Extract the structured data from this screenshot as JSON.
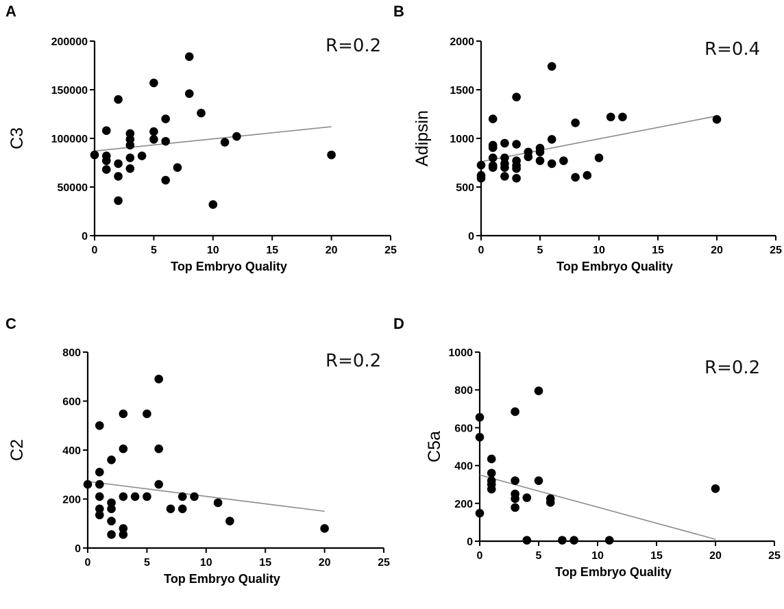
{
  "chart_data": [
    {
      "type": "scatter",
      "panel": "A",
      "xlabel": "Top Embryo Quality",
      "ylabel": "C3",
      "annotation": "R=0.2",
      "xlim": [
        0,
        25
      ],
      "ylim": [
        0,
        200000
      ],
      "xticks": [
        0,
        5,
        10,
        15,
        20,
        25
      ],
      "yticks": [
        0,
        50000,
        100000,
        150000,
        200000
      ],
      "trendline": [
        [
          0,
          87000
        ],
        [
          20,
          112000
        ]
      ],
      "points": [
        [
          0,
          83000
        ],
        [
          1,
          108000
        ],
        [
          1,
          82000
        ],
        [
          1,
          77000
        ],
        [
          1,
          68000
        ],
        [
          2,
          140000
        ],
        [
          2,
          74000
        ],
        [
          2,
          61000
        ],
        [
          2,
          36000
        ],
        [
          3,
          105000
        ],
        [
          3,
          99000
        ],
        [
          3,
          93000
        ],
        [
          3,
          80000
        ],
        [
          3,
          69000
        ],
        [
          4,
          82000
        ],
        [
          5,
          157000
        ],
        [
          5,
          107000
        ],
        [
          5,
          99000
        ],
        [
          6,
          120000
        ],
        [
          6,
          97000
        ],
        [
          6,
          57000
        ],
        [
          7,
          70000
        ],
        [
          8,
          184000
        ],
        [
          8,
          146000
        ],
        [
          9,
          126000
        ],
        [
          10,
          32000
        ],
        [
          11,
          96000
        ],
        [
          12,
          102000
        ],
        [
          20,
          83000
        ]
      ]
    },
    {
      "type": "scatter",
      "panel": "B",
      "xlabel": "Top Embryo Quality",
      "ylabel": "Adipsin",
      "annotation": "R=0.4",
      "xlim": [
        0,
        25
      ],
      "ylim": [
        0,
        2000
      ],
      "xticks": [
        0,
        5,
        10,
        15,
        20,
        25
      ],
      "yticks": [
        0,
        500,
        1000,
        1500,
        2000
      ],
      "trendline": [
        [
          0,
          760
        ],
        [
          20,
          1230
        ]
      ],
      "points": [
        [
          0,
          725
        ],
        [
          0,
          620
        ],
        [
          0,
          590
        ],
        [
          1,
          1200
        ],
        [
          1,
          930
        ],
        [
          1,
          905
        ],
        [
          1,
          800
        ],
        [
          1,
          720
        ],
        [
          1,
          700
        ],
        [
          2,
          950
        ],
        [
          2,
          800
        ],
        [
          2,
          740
        ],
        [
          2,
          700
        ],
        [
          2,
          610
        ],
        [
          3,
          1425
        ],
        [
          3,
          940
        ],
        [
          3,
          770
        ],
        [
          3,
          720
        ],
        [
          3,
          690
        ],
        [
          3,
          590
        ],
        [
          4,
          860
        ],
        [
          4,
          810
        ],
        [
          5,
          900
        ],
        [
          5,
          860
        ],
        [
          5,
          770
        ],
        [
          6,
          1740
        ],
        [
          6,
          990
        ],
        [
          6,
          740
        ],
        [
          7,
          770
        ],
        [
          8,
          1160
        ],
        [
          8,
          600
        ],
        [
          9,
          620
        ],
        [
          10,
          800
        ],
        [
          11,
          1220
        ],
        [
          12,
          1220
        ],
        [
          20,
          1195
        ]
      ]
    },
    {
      "type": "scatter",
      "panel": "C",
      "xlabel": "Top Embryo Quality",
      "ylabel": "C2",
      "annotation": "R=0.2",
      "xlim": [
        0,
        25
      ],
      "ylim": [
        0,
        800
      ],
      "xticks": [
        0,
        5,
        10,
        15,
        20,
        25
      ],
      "yticks": [
        0,
        200,
        400,
        600,
        800
      ],
      "trendline": [
        [
          0,
          272
        ],
        [
          20,
          150
        ]
      ],
      "points": [
        [
          0,
          260
        ],
        [
          1,
          500
        ],
        [
          1,
          310
        ],
        [
          1,
          260
        ],
        [
          1,
          210
        ],
        [
          1,
          160
        ],
        [
          1,
          135
        ],
        [
          2,
          360
        ],
        [
          2,
          185
        ],
        [
          2,
          160
        ],
        [
          2,
          110
        ],
        [
          2,
          55
        ],
        [
          3,
          548
        ],
        [
          3,
          405
        ],
        [
          3,
          210
        ],
        [
          3,
          80
        ],
        [
          3,
          55
        ],
        [
          4,
          210
        ],
        [
          5,
          548
        ],
        [
          5,
          210
        ],
        [
          6,
          690
        ],
        [
          6,
          405
        ],
        [
          6,
          260
        ],
        [
          7,
          160
        ],
        [
          8,
          210
        ],
        [
          8,
          160
        ],
        [
          9,
          210
        ],
        [
          11,
          185
        ],
        [
          12,
          110
        ],
        [
          20,
          80
        ]
      ]
    },
    {
      "type": "scatter",
      "panel": "D",
      "xlabel": "Top Embryo Quality",
      "ylabel": "C5a",
      "annotation": "R=0.2",
      "xlim": [
        0,
        25
      ],
      "ylim": [
        0,
        1000
      ],
      "xticks": [
        0,
        5,
        10,
        15,
        20,
        25
      ],
      "yticks": [
        0,
        200,
        400,
        600,
        800,
        1000
      ],
      "trendline": [
        [
          0,
          350
        ],
        [
          20,
          10
        ]
      ],
      "points": [
        [
          0,
          655
        ],
        [
          0,
          550
        ],
        [
          0,
          148
        ],
        [
          1,
          435
        ],
        [
          1,
          360
        ],
        [
          1,
          320
        ],
        [
          1,
          300
        ],
        [
          1,
          275
        ],
        [
          3,
          685
        ],
        [
          3,
          320
        ],
        [
          3,
          250
        ],
        [
          3,
          225
        ],
        [
          3,
          178
        ],
        [
          4,
          230
        ],
        [
          4,
          5
        ],
        [
          5,
          795
        ],
        [
          5,
          320
        ],
        [
          6,
          225
        ],
        [
          6,
          205
        ],
        [
          7,
          5
        ],
        [
          8,
          5
        ],
        [
          11,
          5
        ],
        [
          20,
          278
        ]
      ]
    }
  ]
}
